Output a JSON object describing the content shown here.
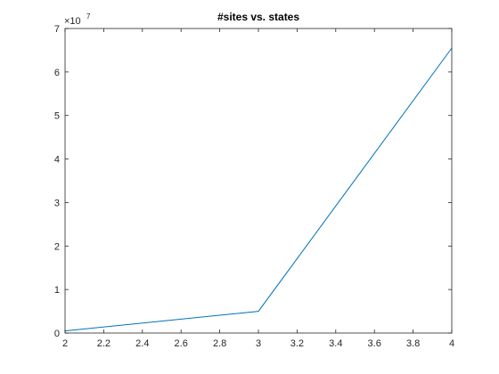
{
  "chart_data": {
    "type": "line",
    "title": "#sites vs. states",
    "xlabel": "",
    "ylabel": "",
    "xlim": [
      2,
      4
    ],
    "ylim": [
      0,
      7
    ],
    "y_scale_exponent": {
      "base": "×10",
      "power": "7"
    },
    "x_ticks": [
      2,
      2.2,
      2.4,
      2.6,
      2.8,
      3,
      3.2,
      3.4,
      3.6,
      3.8,
      4
    ],
    "x_tick_labels": [
      "2",
      "2.2",
      "2.4",
      "2.6",
      "2.8",
      "3",
      "3.2",
      "3.4",
      "3.6",
      "3.8",
      "4"
    ],
    "y_ticks": [
      0,
      1,
      2,
      3,
      4,
      5,
      6,
      7
    ],
    "y_tick_labels": [
      "0",
      "1",
      "2",
      "3",
      "4",
      "5",
      "6",
      "7"
    ],
    "grid": false,
    "series": [
      {
        "x": [
          2,
          3,
          4
        ],
        "y": [
          0.05,
          0.5,
          6.55
        ],
        "color": "#0072BD"
      }
    ]
  }
}
